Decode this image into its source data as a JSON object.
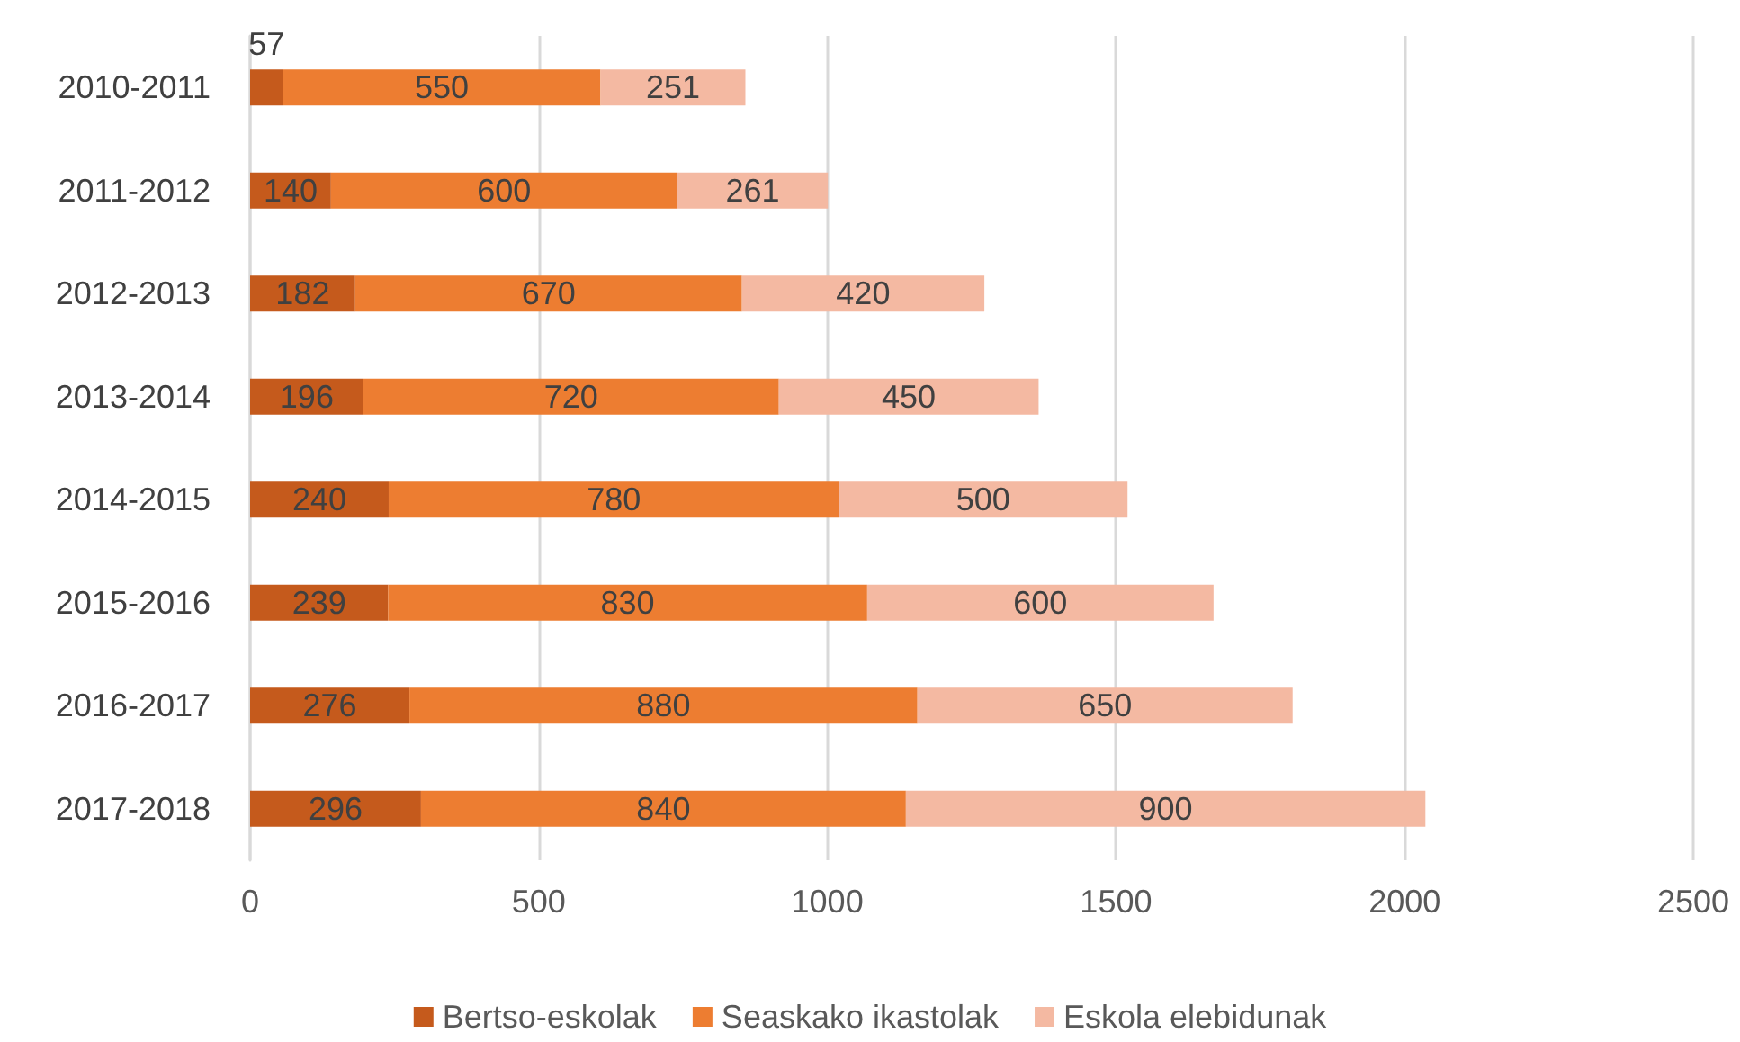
{
  "chart_data": {
    "type": "bar",
    "orientation": "horizontal",
    "stacked": true,
    "data_labels": true,
    "grid": "x",
    "legend": "bottom",
    "categories": [
      "2010-2011",
      "2011-2012",
      "2012-2013",
      "2013-2014",
      "2014-2015",
      "2015-2016",
      "2016-2017",
      "2017-2018"
    ],
    "xlim": [
      0,
      2500
    ],
    "xticks": [
      0,
      500,
      1000,
      1500,
      2000,
      2500
    ],
    "series": [
      {
        "name": "Bertso-eskolak",
        "color": "#c55a1c",
        "values": [
          57,
          140,
          182,
          196,
          240,
          239,
          276,
          296
        ]
      },
      {
        "name": "Seaskako ikastolak",
        "color": "#ed7d31",
        "values": [
          550,
          600,
          670,
          720,
          780,
          830,
          880,
          840
        ]
      },
      {
        "name": "Eskola elebidunak",
        "color": "#f4b9a2",
        "values": [
          251,
          261,
          420,
          450,
          500,
          600,
          650,
          900
        ]
      }
    ]
  }
}
